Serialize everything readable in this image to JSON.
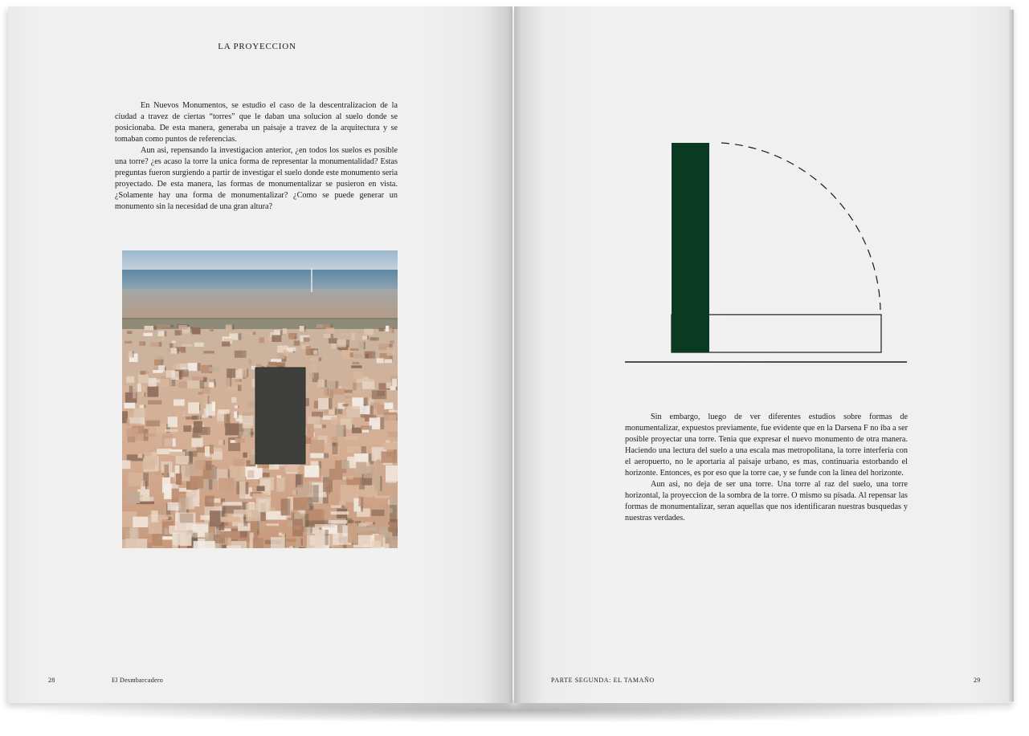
{
  "left_page": {
    "section_title": "LA PROYECCION",
    "paragraphs": [
      "En Nuevos Monumentos, se estudio el caso de la descentralizacion de la ciudad a travez de ciertas “torres” que le daban una solucion al suelo donde se posicionaba. De esta manera, generaba un paisaje a travez de la arquitectura y se tomaban como puntos de referencias.",
      "Aun asi, repensando la investigacion anterior, ¿en todos los suelos es posible una torre? ¿es acaso la torre la unica forma de representar la monumentalidad? Estas preguntas fueron surgiendo a partir de investigar el suelo donde este monumento seria proyectado. De esta manera, las formas de monumentalizar se pusieron en vista. ¿Solamente hay una forma de monumentalizar? ¿Como se puede generar un monumento sin la necesidad de una gran altura?"
    ],
    "page_number": "28",
    "footer_title": "El Desmbarcadero"
  },
  "right_page": {
    "paragraphs": [
      "Sin embargo, luego de ver diferentes estudios sobre formas de monumentalizar, expuestos previamente, fue evidente que en la Darsena F no iba a ser posible proyectar una torre. Tenia que expresar el nuevo monumento de otra manera. Haciendo una lectura del suelo a una escala mas metropolitana, la torre interferia con el aeropuerto, no le aportaria al paisaje urbano, es mas, continuaria estorbando el horizonte. Entonces, es por eso que la torre cae, y se funde con la linea del horizonte.",
      "Aun asi, no deja de ser una torre. Una torre al raz del suelo, una torre horizontal, la proyeccion de la sombra de la torre. O mismo su pisada. Al repensar las formas de monumentalizar, seran aquellas que nos identificaran nuestras busquedas y nuestras verdades."
    ],
    "page_number": "29",
    "footer_title": "PARTE SEGUNDA: EL TAMAÑO"
  },
  "colors": {
    "tower_green": "#0a3a22",
    "page": "#f0f0f0",
    "text": "#1a1a1a"
  }
}
